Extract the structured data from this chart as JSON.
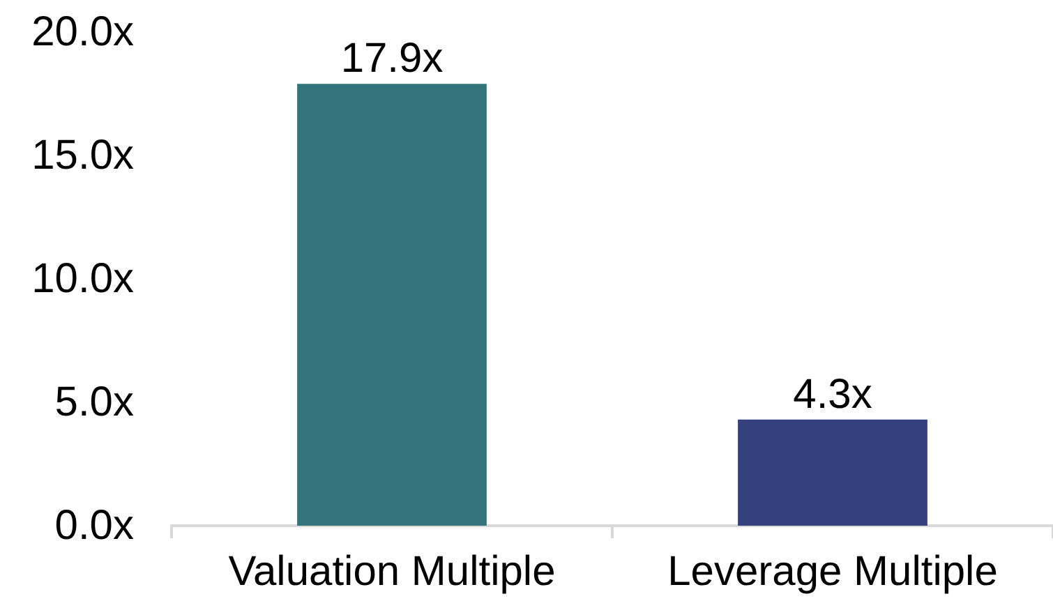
{
  "chart_data": {
    "type": "bar",
    "categories": [
      "Valuation Multiple",
      "Leverage Multiple"
    ],
    "values": [
      17.9,
      4.3
    ],
    "colors": [
      "#33757a",
      "#34417c"
    ],
    "value_labels": [
      "17.9x",
      "4.3x"
    ],
    "ylim": [
      0,
      20
    ],
    "yticks": [
      {
        "value": 0,
        "label": "0.0x"
      },
      {
        "value": 5,
        "label": "5.0x"
      },
      {
        "value": 10,
        "label": "10.0x"
      },
      {
        "value": 15,
        "label": "15.0x"
      },
      {
        "value": 20,
        "label": "20.0x"
      }
    ]
  }
}
